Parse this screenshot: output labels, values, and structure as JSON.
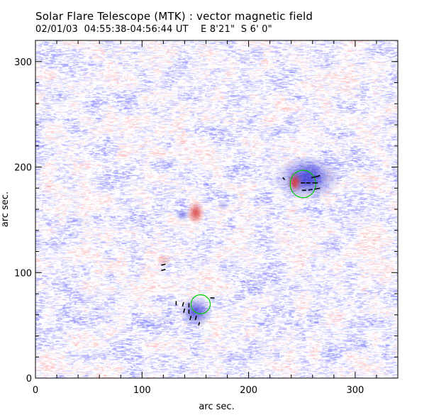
{
  "figure": {
    "title": "Solar Flare Telescope (MTK) : vector magnetic field",
    "subtitle": "02/01/03  04:55:38-04:56:44 UT    E 8'21\"  S 6' 0\""
  },
  "chart_data": {
    "type": "heatmap",
    "title": "Solar Flare Telescope (MTK) : vector magnetic field",
    "xlabel": "arc sec.",
    "ylabel": "arc sec.",
    "xlim": [
      0,
      340
    ],
    "ylim": [
      0,
      320
    ],
    "x_ticks": [
      0,
      100,
      200,
      300
    ],
    "y_ticks": [
      0,
      100,
      200,
      300
    ],
    "grid": false,
    "colors": {
      "positive_polarity": "#e07070",
      "negative_polarity": "#6f6fd8",
      "contour": "#00cc00",
      "vectors": "#000000"
    },
    "magnetic_regions": [
      {
        "name": "negative-region-upper-right",
        "polarity": "negative",
        "x": 255,
        "y": 190,
        "rx": 22,
        "ry": 15,
        "strength": 1.0
      },
      {
        "name": "positive-spot-upper-right",
        "polarity": "positive",
        "x": 243,
        "y": 186,
        "rx": 5,
        "ry": 7,
        "strength": 1.0
      },
      {
        "name": "positive-region-center",
        "polarity": "positive",
        "x": 150,
        "y": 157,
        "rx": 6,
        "ry": 8,
        "strength": 0.9
      },
      {
        "name": "negative-spot-center",
        "polarity": "negative",
        "x": 138,
        "y": 155,
        "rx": 5,
        "ry": 4,
        "strength": 0.6
      },
      {
        "name": "negative-patch-center-right",
        "polarity": "negative",
        "x": 176,
        "y": 164,
        "rx": 5,
        "ry": 3,
        "strength": 0.4
      },
      {
        "name": "positive-patch-left",
        "polarity": "positive",
        "x": 120,
        "y": 112,
        "rx": 6,
        "ry": 5,
        "strength": 0.3
      },
      {
        "name": "negative-region-lower",
        "polarity": "negative",
        "x": 150,
        "y": 63,
        "rx": 11,
        "ry": 11,
        "strength": 0.9
      }
    ],
    "contours": [
      {
        "name": "contour-upper-right",
        "x": 251,
        "y": 184,
        "rx": 12,
        "ry": 13
      },
      {
        "name": "contour-lower",
        "x": 155,
        "y": 70,
        "rx": 9,
        "ry": 9
      }
    ],
    "vectors": [
      {
        "x": 232,
        "y": 190,
        "dx": 2,
        "dy": -2
      },
      {
        "x": 259,
        "y": 190,
        "dx": 5,
        "dy": 1
      },
      {
        "x": 264,
        "y": 191,
        "dx": 3,
        "dy": 1
      },
      {
        "x": 249,
        "y": 185,
        "dx": 4,
        "dy": 0
      },
      {
        "x": 254,
        "y": 185,
        "dx": 4,
        "dy": 0
      },
      {
        "x": 260,
        "y": 185,
        "dx": 5,
        "dy": 0
      },
      {
        "x": 250,
        "y": 178,
        "dx": 4,
        "dy": 0
      },
      {
        "x": 256,
        "y": 178,
        "dx": 4,
        "dy": 1
      },
      {
        "x": 262,
        "y": 179,
        "dx": 5,
        "dy": 1
      },
      {
        "x": 118,
        "y": 107,
        "dx": 4,
        "dy": 1
      },
      {
        "x": 118,
        "y": 102,
        "dx": 4,
        "dy": 1
      },
      {
        "x": 164,
        "y": 76,
        "dx": 4,
        "dy": 0
      },
      {
        "x": 132,
        "y": 69,
        "dx": 0,
        "dy": 4
      },
      {
        "x": 138,
        "y": 68,
        "dx": 1,
        "dy": 4
      },
      {
        "x": 144,
        "y": 67,
        "dx": 0,
        "dy": 4
      },
      {
        "x": 139,
        "y": 62,
        "dx": 1,
        "dy": 4
      },
      {
        "x": 144,
        "y": 61,
        "dx": 0,
        "dy": 4
      },
      {
        "x": 145,
        "y": 55,
        "dx": 1,
        "dy": 4
      },
      {
        "x": 150,
        "y": 55,
        "dx": 1,
        "dy": 4
      },
      {
        "x": 153,
        "y": 50,
        "dx": 1,
        "dy": 3
      }
    ]
  }
}
